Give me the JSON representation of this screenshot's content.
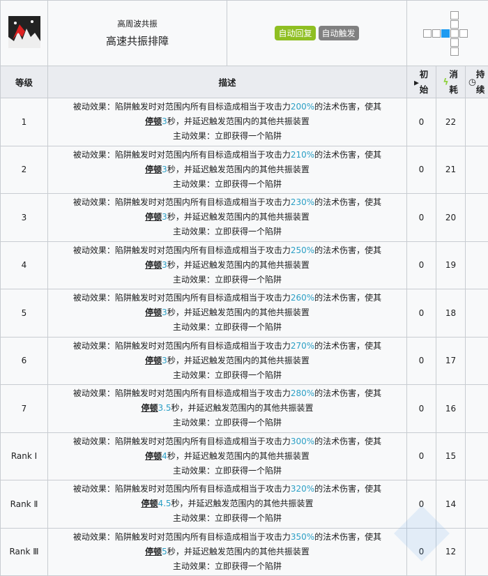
{
  "skill": {
    "subtitle": "高周波共振",
    "name": "高速共振排障",
    "tags": [
      {
        "label": "自动回复",
        "color": "#8fbf22"
      },
      {
        "label": "自动触发",
        "color": "#808080"
      }
    ],
    "range_icon": "range-cross-grid-icon",
    "skill_icon": "trap-spikes-icon"
  },
  "headers": {
    "level": "等级",
    "desc": "描述",
    "initial": "初始",
    "cost": "消耗",
    "duration": "持续"
  },
  "rows": [
    {
      "level": "1",
      "pre": "被动效果：陷阱触发时对范围内所有目标造成相当于攻击力",
      "val": "200%",
      "post": "的法术伤害，使其",
      "stun": "停顿",
      "dur": "3",
      "rest": "秒，并延迟触发范围内的其他共振装置",
      "active": "主动效果：立即获得一个陷阱",
      "initial": "0",
      "cost": "22"
    },
    {
      "level": "2",
      "pre": "被动效果：陷阱触发时对范围内所有目标造成相当于攻击力",
      "val": "210%",
      "post": "的法术伤害，使其",
      "stun": "停顿",
      "dur": "3",
      "rest": "秒，并延迟触发范围内的其他共振装置",
      "active": "主动效果：立即获得一个陷阱",
      "initial": "0",
      "cost": "21"
    },
    {
      "level": "3",
      "pre": "被动效果：陷阱触发时对范围内所有目标造成相当于攻击力",
      "val": "230%",
      "post": "的法术伤害，使其",
      "stun": "停顿",
      "dur": "3",
      "rest": "秒，并延迟触发范围内的其他共振装置",
      "active": "主动效果：立即获得一个陷阱",
      "initial": "0",
      "cost": "20"
    },
    {
      "level": "4",
      "pre": "被动效果：陷阱触发时对范围内所有目标造成相当于攻击力",
      "val": "250%",
      "post": "的法术伤害，使其",
      "stun": "停顿",
      "dur": "3",
      "rest": "秒，并延迟触发范围内的其他共振装置",
      "active": "主动效果：立即获得一个陷阱",
      "initial": "0",
      "cost": "19"
    },
    {
      "level": "5",
      "pre": "被动效果：陷阱触发时对范围内所有目标造成相当于攻击力",
      "val": "260%",
      "post": "的法术伤害，使其",
      "stun": "停顿",
      "dur": "3",
      "rest": "秒，并延迟触发范围内的其他共振装置",
      "active": "主动效果：立即获得一个陷阱",
      "initial": "0",
      "cost": "18"
    },
    {
      "level": "6",
      "pre": "被动效果：陷阱触发时对范围内所有目标造成相当于攻击力",
      "val": "270%",
      "post": "的法术伤害，使其",
      "stun": "停顿",
      "dur": "3",
      "rest": "秒，并延迟触发范围内的其他共振装置",
      "active": "主动效果：立即获得一个陷阱",
      "initial": "0",
      "cost": "17"
    },
    {
      "level": "7",
      "pre": "被动效果：陷阱触发时对范围内所有目标造成相当于攻击力",
      "val": "280%",
      "post": "的法术伤害，使其",
      "stun": "停顿",
      "dur": "3.5",
      "rest": "秒，并延迟触发范围内的其他共振装置",
      "active": "主动效果：立即获得一个陷阱",
      "initial": "0",
      "cost": "16"
    },
    {
      "level": "Rank Ⅰ",
      "pre": "被动效果：陷阱触发时对范围内所有目标造成相当于攻击力",
      "val": "300%",
      "post": "的法术伤害，使其",
      "stun": "停顿",
      "dur": "4",
      "rest": "秒，并延迟触发范围内的其他共振装置",
      "active": "主动效果：立即获得一个陷阱",
      "initial": "0",
      "cost": "15"
    },
    {
      "level": "Rank Ⅱ",
      "pre": "被动效果：陷阱触发时对范围内所有目标造成相当于攻击力",
      "val": "320%",
      "post": "的法术伤害，使其",
      "stun": "停顿",
      "dur": "4.5",
      "rest": "秒，并延迟触发范围内的其他共振装置",
      "active": "主动效果：立即获得一个陷阱",
      "initial": "0",
      "cost": "14"
    },
    {
      "level": "Rank Ⅲ",
      "pre": "被动效果：陷阱触发时对范围内所有目标造成相当于攻击力",
      "val": "350%",
      "post": "的法术伤害，使其",
      "stun": "停顿",
      "dur": "5",
      "rest": "秒，并延迟触发范围内的其他共振装置",
      "active": "主动效果：立即获得一个陷阱",
      "initial": "0",
      "cost": "12"
    }
  ]
}
